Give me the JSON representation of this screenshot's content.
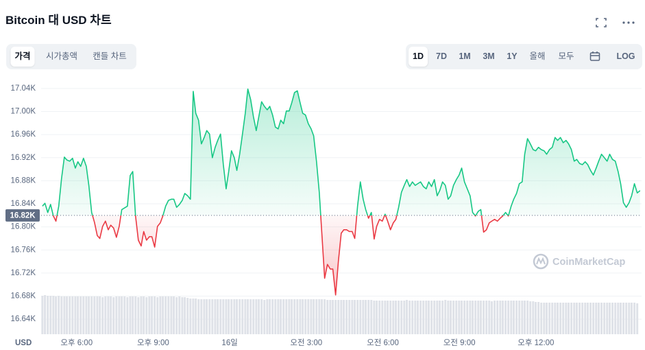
{
  "header": {
    "title": "Bitcoin 대 USD 차트",
    "tabs": [
      "가격",
      "시가총액",
      "캔들 차트"
    ],
    "ranges": [
      "1D",
      "7D",
      "1M",
      "3M",
      "1Y",
      "올해",
      "모두"
    ],
    "scale_toggle": "LOG"
  },
  "watermark": "CoinMarketCap",
  "chart_data": {
    "type": "line",
    "unit_label": "USD",
    "grid": true,
    "color_above": "#16c784",
    "color_below": "#ea3943",
    "baseline": {
      "value": 16820,
      "label": "16.82K"
    },
    "xlim": [
      16.61,
      40.14
    ],
    "ylim": [
      16614,
      17053
    ],
    "xticks": [
      {
        "value": 18,
        "label": "오후 6:00"
      },
      {
        "value": 21,
        "label": "오후 9:00"
      },
      {
        "value": 24,
        "label": "16일"
      },
      {
        "value": 27,
        "label": "오전 3:00"
      },
      {
        "value": 30,
        "label": "오전 6:00"
      },
      {
        "value": 33,
        "label": "오전 9:00"
      },
      {
        "value": 36,
        "label": "오후 12:00"
      }
    ],
    "yticks": [
      {
        "value": 17040,
        "label": "17.04K"
      },
      {
        "value": 17000,
        "label": "17.00K"
      },
      {
        "value": 16960,
        "label": "16.96K"
      },
      {
        "value": 16920,
        "label": "16.92K"
      },
      {
        "value": 16880,
        "label": "16.88K"
      },
      {
        "value": 16840,
        "label": "16.84K"
      },
      {
        "value": 16800,
        "label": "16.80K"
      },
      {
        "value": 16760,
        "label": "16.76K"
      },
      {
        "value": 16720,
        "label": "16.72K"
      },
      {
        "value": 16680,
        "label": "16.68K"
      },
      {
        "value": 16640,
        "label": "16.64K"
      }
    ],
    "x": [
      16.66,
      16.76,
      16.87,
      16.98,
      17.09,
      17.19,
      17.3,
      17.41,
      17.52,
      17.62,
      17.73,
      17.84,
      17.95,
      18.05,
      18.16,
      18.27,
      18.38,
      18.48,
      18.59,
      18.7,
      18.81,
      18.91,
      19.02,
      19.13,
      19.24,
      19.34,
      19.45,
      19.56,
      19.67,
      19.77,
      19.88,
      19.99,
      20.1,
      20.2,
      20.31,
      20.42,
      20.53,
      20.63,
      20.74,
      20.85,
      20.95,
      21.06,
      21.17,
      21.28,
      21.38,
      21.49,
      21.6,
      21.71,
      21.81,
      21.92,
      22.03,
      22.14,
      22.24,
      22.35,
      22.46,
      22.57,
      22.67,
      22.78,
      22.89,
      23.0,
      23.1,
      23.21,
      23.32,
      23.43,
      23.53,
      23.64,
      23.75,
      23.86,
      23.96,
      24.07,
      24.18,
      24.28,
      24.39,
      24.5,
      24.61,
      24.71,
      24.82,
      24.93,
      25.04,
      25.14,
      25.25,
      25.36,
      25.47,
      25.57,
      25.68,
      25.79,
      25.9,
      26.0,
      26.11,
      26.22,
      26.33,
      26.43,
      26.54,
      26.65,
      26.76,
      26.86,
      26.97,
      27.08,
      27.19,
      27.29,
      27.4,
      27.51,
      27.61,
      27.72,
      27.83,
      27.94,
      28.04,
      28.15,
      28.26,
      28.37,
      28.47,
      28.58,
      28.69,
      28.8,
      28.9,
      29.01,
      29.12,
      29.23,
      29.33,
      29.44,
      29.55,
      29.66,
      29.76,
      29.87,
      29.98,
      30.09,
      30.19,
      30.3,
      30.41,
      30.51,
      30.62,
      30.73,
      30.84,
      30.94,
      31.05,
      31.16,
      31.27,
      31.37,
      31.48,
      31.59,
      31.7,
      31.8,
      31.91,
      32.02,
      32.13,
      32.23,
      32.34,
      32.45,
      32.56,
      32.66,
      32.77,
      32.88,
      32.99,
      33.09,
      33.2,
      33.31,
      33.42,
      33.52,
      33.63,
      33.74,
      33.84,
      33.95,
      34.06,
      34.17,
      34.27,
      34.38,
      34.49,
      34.6,
      34.7,
      34.81,
      34.92,
      35.03,
      35.13,
      35.24,
      35.35,
      35.46,
      35.56,
      35.67,
      35.78,
      35.89,
      35.99,
      36.1,
      36.21,
      36.32,
      36.42,
      36.53,
      36.64,
      36.75,
      36.85,
      36.96,
      37.07,
      37.18,
      37.28,
      37.39,
      37.5,
      37.6,
      37.71,
      37.82,
      37.93,
      38.03,
      38.14,
      38.25,
      38.36,
      38.46,
      38.57,
      38.68,
      38.79,
      38.89,
      39.0,
      39.11,
      39.22,
      39.32,
      39.43,
      39.54,
      39.65,
      39.75,
      39.86,
      39.97,
      40.08
    ],
    "values": [
      16836,
      16841,
      16825,
      16839,
      16819,
      16810,
      16836,
      16884,
      16921,
      16916,
      16914,
      16919,
      16902,
      16913,
      16905,
      16919,
      16905,
      16872,
      16825,
      16808,
      16785,
      16780,
      16801,
      16810,
      16795,
      16803,
      16798,
      16782,
      16801,
      16830,
      16833,
      16836,
      16889,
      16896,
      16819,
      16777,
      16767,
      16792,
      16777,
      16783,
      16783,
      16765,
      16801,
      16807,
      16819,
      16836,
      16846,
      16848,
      16848,
      16834,
      16839,
      16846,
      16858,
      16854,
      16848,
      17035,
      16997,
      16985,
      16944,
      16955,
      16967,
      16961,
      16920,
      16938,
      16950,
      16961,
      16908,
      16866,
      16896,
      16932,
      16920,
      16898,
      16926,
      16961,
      16997,
      17039,
      17021,
      16991,
      16967,
      16991,
      17017,
      17009,
      17003,
      17009,
      16994,
      16973,
      16970,
      16985,
      16979,
      17001,
      17001,
      17015,
      17033,
      17036,
      17015,
      16997,
      16994,
      16979,
      16970,
      16958,
      16914,
      16860,
      16789,
      16711,
      16735,
      16727,
      16727,
      16682,
      16741,
      16789,
      16795,
      16795,
      16792,
      16792,
      16780,
      16836,
      16878,
      16848,
      16830,
      16815,
      16825,
      16779,
      16801,
      16813,
      16810,
      16822,
      16810,
      16795,
      16807,
      16813,
      16834,
      16860,
      16872,
      16882,
      16870,
      16878,
      16872,
      16875,
      16878,
      16870,
      16866,
      16878,
      16870,
      16882,
      16854,
      16863,
      16878,
      16872,
      16848,
      16854,
      16872,
      16882,
      16890,
      16902,
      16878,
      16866,
      16854,
      16825,
      16819,
      16827,
      16830,
      16791,
      16795,
      16807,
      16810,
      16813,
      16810,
      16815,
      16819,
      16825,
      16819,
      16836,
      16848,
      16858,
      16875,
      16878,
      16926,
      16953,
      16944,
      16934,
      16932,
      16938,
      16934,
      16932,
      16926,
      16934,
      16938,
      16955,
      16950,
      16955,
      16946,
      16950,
      16944,
      16934,
      16914,
      16917,
      16910,
      16908,
      16913,
      16908,
      16898,
      16890,
      16902,
      16914,
      16926,
      16920,
      16914,
      16926,
      16917,
      16914,
      16896,
      16875,
      16842,
      16834,
      16842,
      16854,
      16875,
      16859,
      16863
    ],
    "volume": {
      "color": "#dfe2e8",
      "values": [
        56,
        57,
        56,
        56,
        56,
        55,
        56,
        55,
        55,
        55,
        55,
        55,
        55,
        55,
        55,
        55,
        55,
        55,
        55,
        55,
        55,
        55,
        54,
        55,
        55,
        55,
        54,
        55,
        55,
        55,
        55,
        54,
        55,
        55,
        55,
        54,
        55,
        55,
        54,
        55,
        55,
        55,
        54,
        55,
        55,
        55,
        55,
        55,
        55,
        54,
        55,
        54,
        54,
        53,
        52,
        52,
        52,
        51,
        51,
        51,
        51,
        51,
        51,
        51,
        51,
        51,
        51,
        51,
        51,
        51,
        51,
        51,
        51,
        51,
        51,
        51,
        51,
        51,
        51,
        51,
        51,
        50,
        51,
        51,
        51,
        51,
        51,
        51,
        51,
        51,
        51,
        51,
        51,
        51,
        51,
        51,
        51,
        51,
        51,
        51,
        51,
        51,
        51,
        51,
        50,
        50,
        50,
        50,
        50,
        50,
        50,
        50,
        50,
        50,
        50,
        50,
        50,
        50,
        50,
        50,
        50,
        49,
        49,
        49,
        49,
        49,
        49,
        49,
        49,
        49,
        49,
        49,
        49,
        50,
        49,
        49,
        49,
        49,
        49,
        49,
        49,
        49,
        49,
        49,
        49,
        49,
        49,
        50,
        49,
        49,
        49,
        49,
        49,
        49,
        49,
        49,
        49,
        49,
        49,
        49,
        49,
        49,
        49,
        49,
        48,
        49,
        49,
        49,
        49,
        49,
        49,
        49,
        49,
        49,
        49,
        49,
        49,
        49,
        48,
        48,
        47,
        47,
        46,
        46,
        46,
        46,
        46,
        46,
        46,
        46,
        46,
        46,
        46,
        46,
        46,
        46,
        46,
        46,
        46,
        46,
        46,
        46,
        46,
        46,
        46,
        46,
        46,
        46,
        46,
        46,
        46,
        46,
        46,
        46,
        46,
        46,
        46,
        45
      ]
    }
  }
}
